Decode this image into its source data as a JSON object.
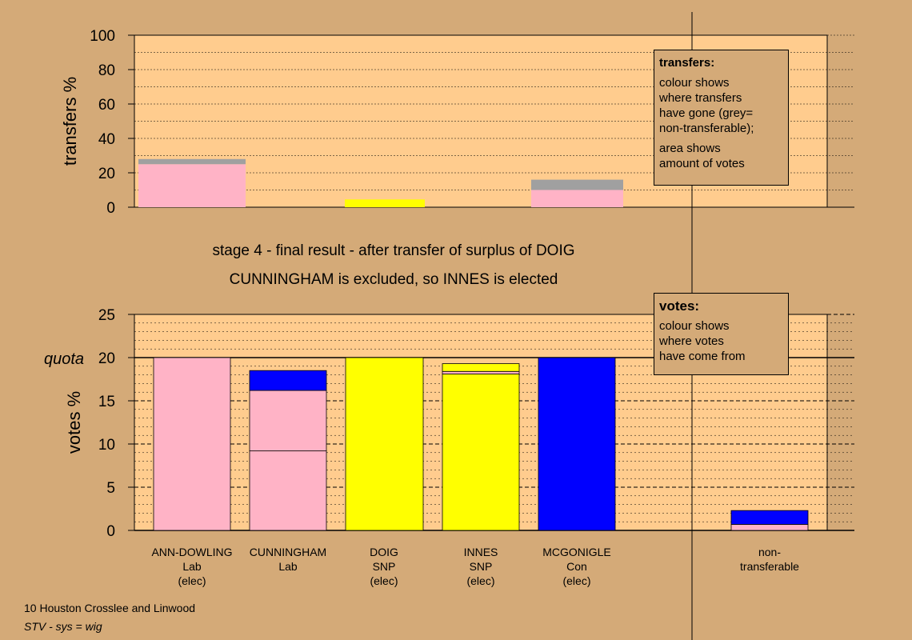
{
  "chart_data": [
    {
      "type": "bar",
      "ylabel": "transfers %",
      "ylim": [
        0,
        100
      ],
      "yticks": [
        0,
        20,
        40,
        60,
        80,
        100
      ],
      "stacked": true,
      "bars": [
        {
          "candidate": "ANN-DOWLING",
          "segments": [
            {
              "value": 25,
              "color": "#ffb3c6"
            },
            {
              "value": 3,
              "color": "#a0a0a0"
            }
          ]
        },
        {
          "candidate": "DOIG",
          "segments": [
            {
              "value": 4.5,
              "color": "#ffff00"
            }
          ]
        },
        {
          "candidate": "MCGONIGLE",
          "segments": [
            {
              "value": 10,
              "color": "#ffb3c6"
            },
            {
              "value": 6,
              "color": "#a0a0a0"
            }
          ]
        }
      ]
    },
    {
      "type": "bar",
      "ylabel": "votes %",
      "ylim": [
        0,
        25
      ],
      "yticks": [
        0,
        5,
        10,
        15,
        20,
        25
      ],
      "quota": 20,
      "quota_label": "quota",
      "stacked": true,
      "categories": [
        {
          "lines": [
            "ANN-DOWLING",
            "Lab",
            "(elec)"
          ],
          "segments": [
            {
              "value": 20,
              "color": "#ffb3c6"
            }
          ]
        },
        {
          "lines": [
            "CUNNINGHAM",
            "Lab"
          ],
          "segments": [
            {
              "value": 9.2,
              "color": "#ffb3c6"
            },
            {
              "value": 7,
              "color": "#ffb3c6"
            },
            {
              "value": 2.3,
              "color": "#0000ff"
            }
          ]
        },
        {
          "lines": [
            "DOIG",
            "SNP",
            "(elec)"
          ],
          "segments": [
            {
              "value": 20,
              "color": "#ffff00"
            }
          ]
        },
        {
          "lines": [
            "INNES",
            "SNP",
            "(elec)"
          ],
          "segments": [
            {
              "value": 18.1,
              "color": "#ffff00"
            },
            {
              "value": 0.3,
              "color": "#ffb3c6"
            },
            {
              "value": 0.9,
              "color": "#ffff00"
            }
          ]
        },
        {
          "lines": [
            "MCGONIGLE",
            "Con",
            "(elec)"
          ],
          "segments": [
            {
              "value": 20,
              "color": "#0000ff"
            }
          ]
        },
        {
          "lines": [
            "non-",
            "transferable"
          ],
          "segments": [
            {
              "value": 0.7,
              "color": "#ffb3c6"
            },
            {
              "value": 1.6,
              "color": "#0000ff"
            }
          ]
        }
      ]
    }
  ],
  "stage_title": "stage 4 - final result - after transfer of surplus of DOIG",
  "stage_subtitle": "CUNNINGHAM is excluded, so INNES is elected",
  "legend_transfers": {
    "title": "transfers:",
    "line1": "colour shows",
    "line2": "where transfers",
    "line3": "have gone (grey=",
    "line4": "non-transferable);",
    "line5": "area shows",
    "line6": "amount of votes"
  },
  "legend_votes": {
    "title": "votes:",
    "line1": "colour shows",
    "line2": "where votes",
    "line3": "have come from"
  },
  "footer": {
    "line1": "10 Houston Crosslee and Linwood",
    "line2": "STV - sys = wig"
  },
  "colors": {
    "background": "#d4aa78",
    "plot": "#ffcc8e"
  }
}
